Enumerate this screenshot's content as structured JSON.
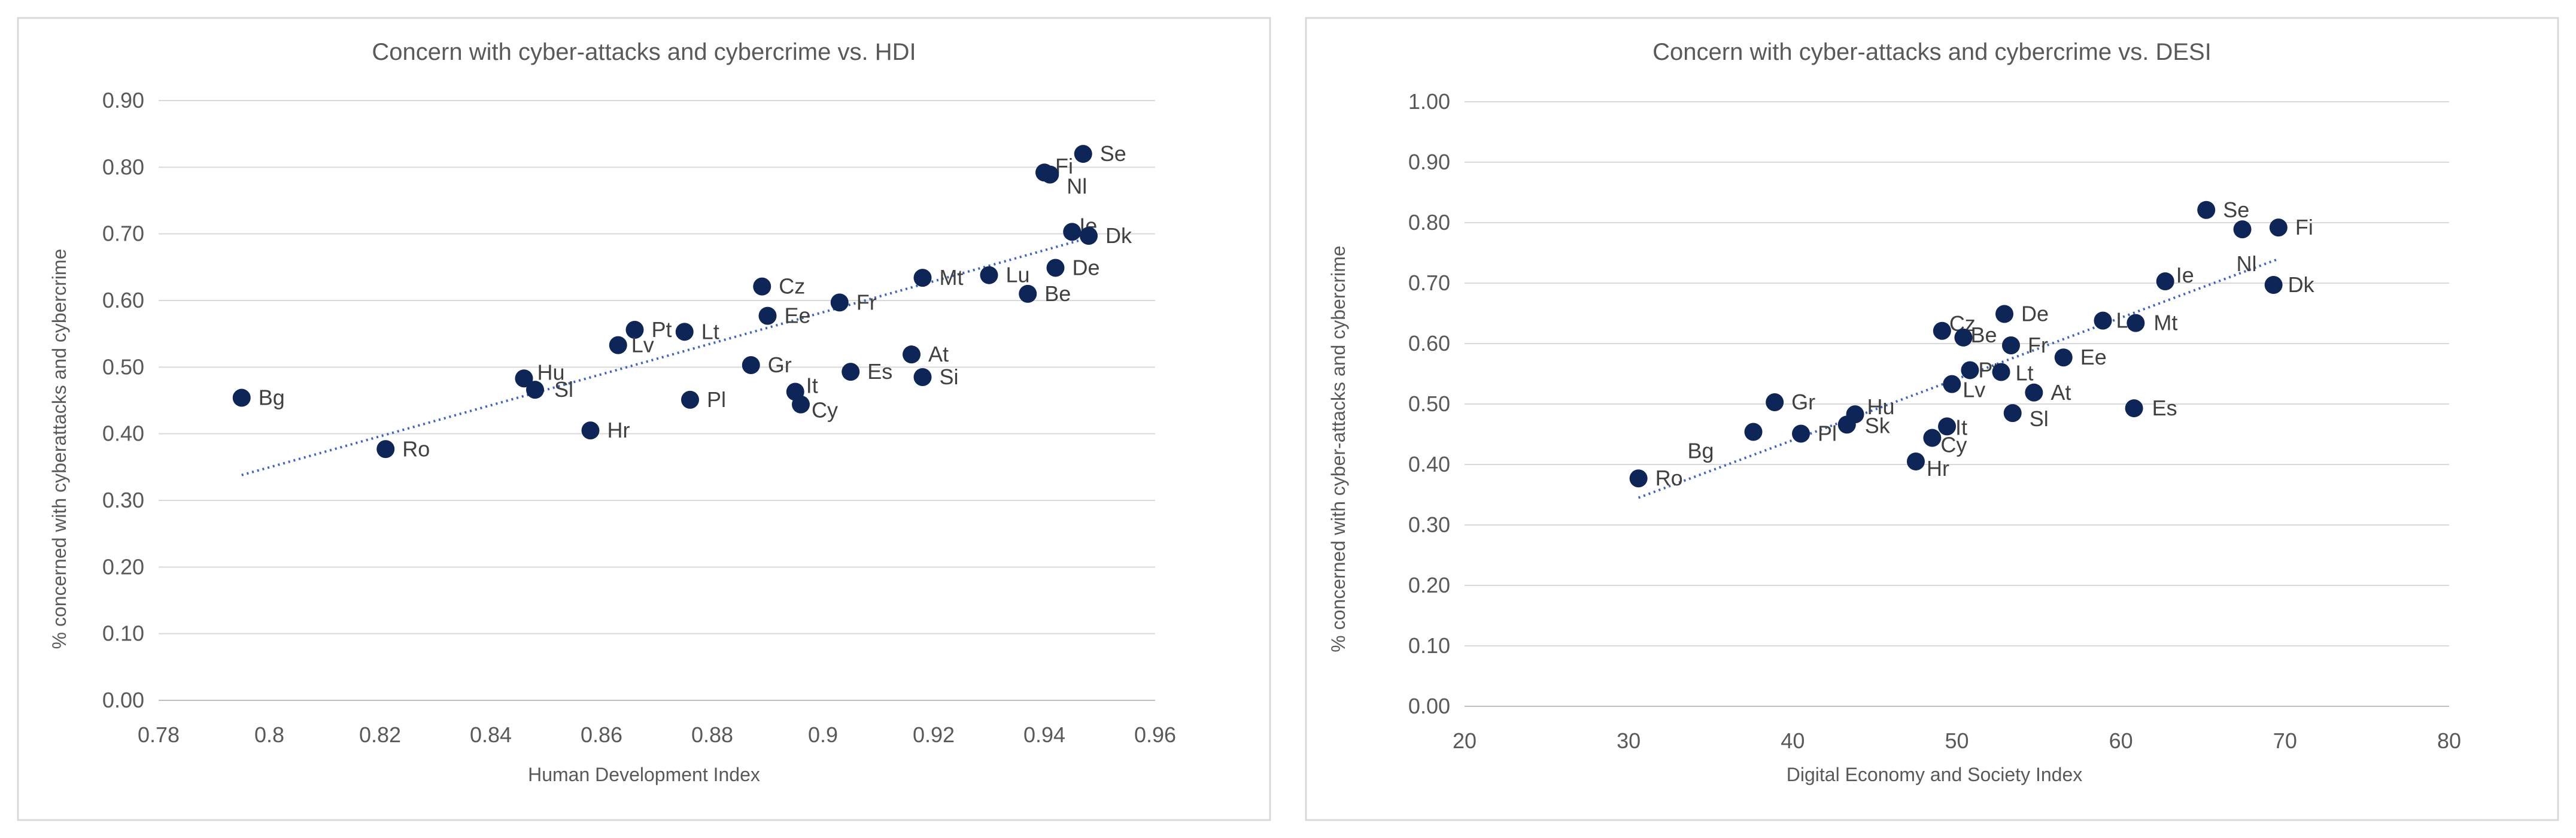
{
  "chart_data": [
    {
      "type": "scatter",
      "title": "Concern with cyber-attacks and cybercrime vs. HDI",
      "xlabel": "Human Development Index",
      "ylabel": "% concerned with cyberattacks and cybercrime",
      "xlim": [
        0.78,
        0.96
      ],
      "ylim": [
        0.0,
        0.9
      ],
      "xticks": [
        "0.78",
        "0.8",
        "0.82",
        "0.84",
        "0.86",
        "0.88",
        "0.9",
        "0.92",
        "0.94",
        "0.96"
      ],
      "yticks": [
        "0.00",
        "0.10",
        "0.20",
        "0.30",
        "0.40",
        "0.50",
        "0.60",
        "0.70",
        "0.80",
        "0.90"
      ],
      "grid": "horizontal",
      "trendline": {
        "type": "linear",
        "x": [
          0.795,
          0.948
        ],
        "y": [
          0.338,
          0.694
        ]
      },
      "points": [
        {
          "label": "Se",
          "x": 0.947,
          "y": 0.82
        },
        {
          "label": "Fi",
          "x": 0.94,
          "y": 0.792
        },
        {
          "label": "Nl",
          "x": 0.941,
          "y": 0.789
        },
        {
          "label": "Ie",
          "x": 0.945,
          "y": 0.703
        },
        {
          "label": "Dk",
          "x": 0.948,
          "y": 0.697
        },
        {
          "label": "De",
          "x": 0.942,
          "y": 0.649
        },
        {
          "label": "Lu",
          "x": 0.93,
          "y": 0.638
        },
        {
          "label": "Mt",
          "x": 0.918,
          "y": 0.634
        },
        {
          "label": "Be",
          "x": 0.937,
          "y": 0.61
        },
        {
          "label": "Cz",
          "x": 0.889,
          "y": 0.621
        },
        {
          "label": "Fr",
          "x": 0.903,
          "y": 0.597
        },
        {
          "label": "Ee",
          "x": 0.89,
          "y": 0.577
        },
        {
          "label": "Pt",
          "x": 0.866,
          "y": 0.556
        },
        {
          "label": "Lt",
          "x": 0.875,
          "y": 0.553
        },
        {
          "label": "Lv",
          "x": 0.863,
          "y": 0.533
        },
        {
          "label": "At",
          "x": 0.916,
          "y": 0.519
        },
        {
          "label": "Gr",
          "x": 0.887,
          "y": 0.503
        },
        {
          "label": "Es",
          "x": 0.905,
          "y": 0.493
        },
        {
          "label": "Si",
          "x": 0.918,
          "y": 0.485
        },
        {
          "label": "Hu",
          "x": 0.846,
          "y": 0.483
        },
        {
          "label": "Sl",
          "x": 0.848,
          "y": 0.466
        },
        {
          "label": "It",
          "x": 0.895,
          "y": 0.463
        },
        {
          "label": "Bg",
          "x": 0.795,
          "y": 0.454
        },
        {
          "label": "Pl",
          "x": 0.876,
          "y": 0.451
        },
        {
          "label": "Cy",
          "x": 0.896,
          "y": 0.444
        },
        {
          "label": "Hr",
          "x": 0.858,
          "y": 0.405
        },
        {
          "label": "Ro",
          "x": 0.821,
          "y": 0.377
        }
      ]
    },
    {
      "type": "scatter",
      "title": "Concern with cyber-attacks and cybercrime vs. DESI",
      "xlabel": "Digital Economy and Society Index",
      "ylabel": "% concerned with cyber-attacks and cybercrime",
      "xlim": [
        20,
        80
      ],
      "ylim": [
        0.0,
        1.0
      ],
      "xticks": [
        "20",
        "30",
        "40",
        "50",
        "60",
        "70",
        "80"
      ],
      "yticks": [
        "0.00",
        "0.10",
        "0.20",
        "0.30",
        "0.40",
        "0.50",
        "0.60",
        "0.70",
        "0.80",
        "0.90",
        "1.00"
      ],
      "grid": "horizontal",
      "trendline": {
        "type": "linear",
        "x": [
          30.6,
          69.5
        ],
        "y": [
          0.345,
          0.739
        ]
      },
      "points": [
        {
          "label": "Se",
          "x": 65.2,
          "y": 0.821
        },
        {
          "label": "Fi",
          "x": 69.6,
          "y": 0.792
        },
        {
          "label": "Nl",
          "x": 67.4,
          "y": 0.789
        },
        {
          "label": "Ie",
          "x": 62.7,
          "y": 0.703
        },
        {
          "label": "Dk",
          "x": 69.3,
          "y": 0.697
        },
        {
          "label": "De",
          "x": 52.9,
          "y": 0.649
        },
        {
          "label": "Lu",
          "x": 58.9,
          "y": 0.638
        },
        {
          "label": "Mt",
          "x": 60.9,
          "y": 0.634
        },
        {
          "label": "Cz",
          "x": 49.1,
          "y": 0.621
        },
        {
          "label": "Be",
          "x": 50.4,
          "y": 0.61
        },
        {
          "label": "Fr",
          "x": 53.3,
          "y": 0.597
        },
        {
          "label": "Ee",
          "x": 56.5,
          "y": 0.577
        },
        {
          "label": "Pt",
          "x": 50.8,
          "y": 0.556
        },
        {
          "label": "Lt",
          "x": 52.7,
          "y": 0.553
        },
        {
          "label": "Lv",
          "x": 49.7,
          "y": 0.533
        },
        {
          "label": "At",
          "x": 54.7,
          "y": 0.519
        },
        {
          "label": "Gr",
          "x": 38.9,
          "y": 0.503
        },
        {
          "label": "Es",
          "x": 60.8,
          "y": 0.493
        },
        {
          "label": "Sl",
          "x": 53.4,
          "y": 0.485
        },
        {
          "label": "Hu",
          "x": 43.8,
          "y": 0.483
        },
        {
          "label": "Sk",
          "x": 43.3,
          "y": 0.466
        },
        {
          "label": "It",
          "x": 49.4,
          "y": 0.463
        },
        {
          "label": "Bg",
          "x": 37.6,
          "y": 0.454
        },
        {
          "label": "Pl",
          "x": 40.5,
          "y": 0.451
        },
        {
          "label": "Cy",
          "x": 48.5,
          "y": 0.444
        },
        {
          "label": "Hr",
          "x": 47.5,
          "y": 0.405
        },
        {
          "label": "Ro",
          "x": 30.6,
          "y": 0.377
        }
      ]
    }
  ]
}
